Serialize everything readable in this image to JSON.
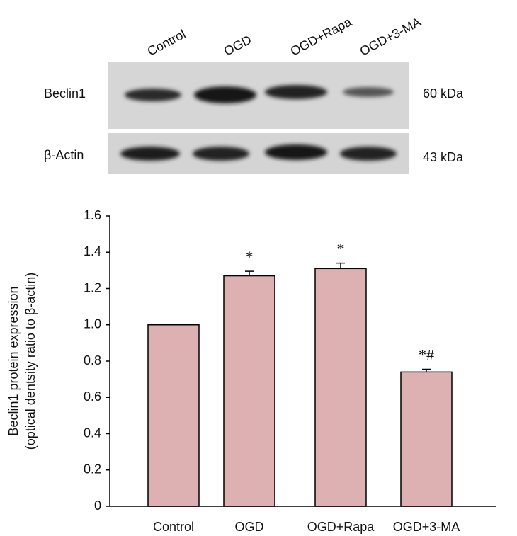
{
  "blot": {
    "lanes": [
      "Control",
      "OGD",
      "OGD+Rapa",
      "OGD+3-MA"
    ],
    "rows": [
      {
        "label": "Beclin1",
        "size": "60 kDa"
      },
      {
        "label": "β-Actin",
        "size": "43 kDa"
      }
    ]
  },
  "chart_data": {
    "type": "bar",
    "ylabel": [
      "Beclin1 protein expression",
      "(optical dentsity ratio to β-actin)"
    ],
    "categories": [
      "Control",
      "OGD",
      "OGD+Rapa",
      "OGD+3-MA"
    ],
    "values": [
      1.0,
      1.27,
      1.31,
      0.74
    ],
    "errors": [
      0,
      0.025,
      0.03,
      0.015
    ],
    "annotations": [
      null,
      "*",
      "*",
      "*#"
    ],
    "color": "#ddb1b1",
    "ylim": [
      0,
      1.6
    ],
    "yticks": [
      0,
      0.2,
      0.4,
      0.6,
      0.8,
      {
        "value": 1,
        "label": "1.0"
      },
      1.2,
      1.4,
      1.6
    ]
  }
}
